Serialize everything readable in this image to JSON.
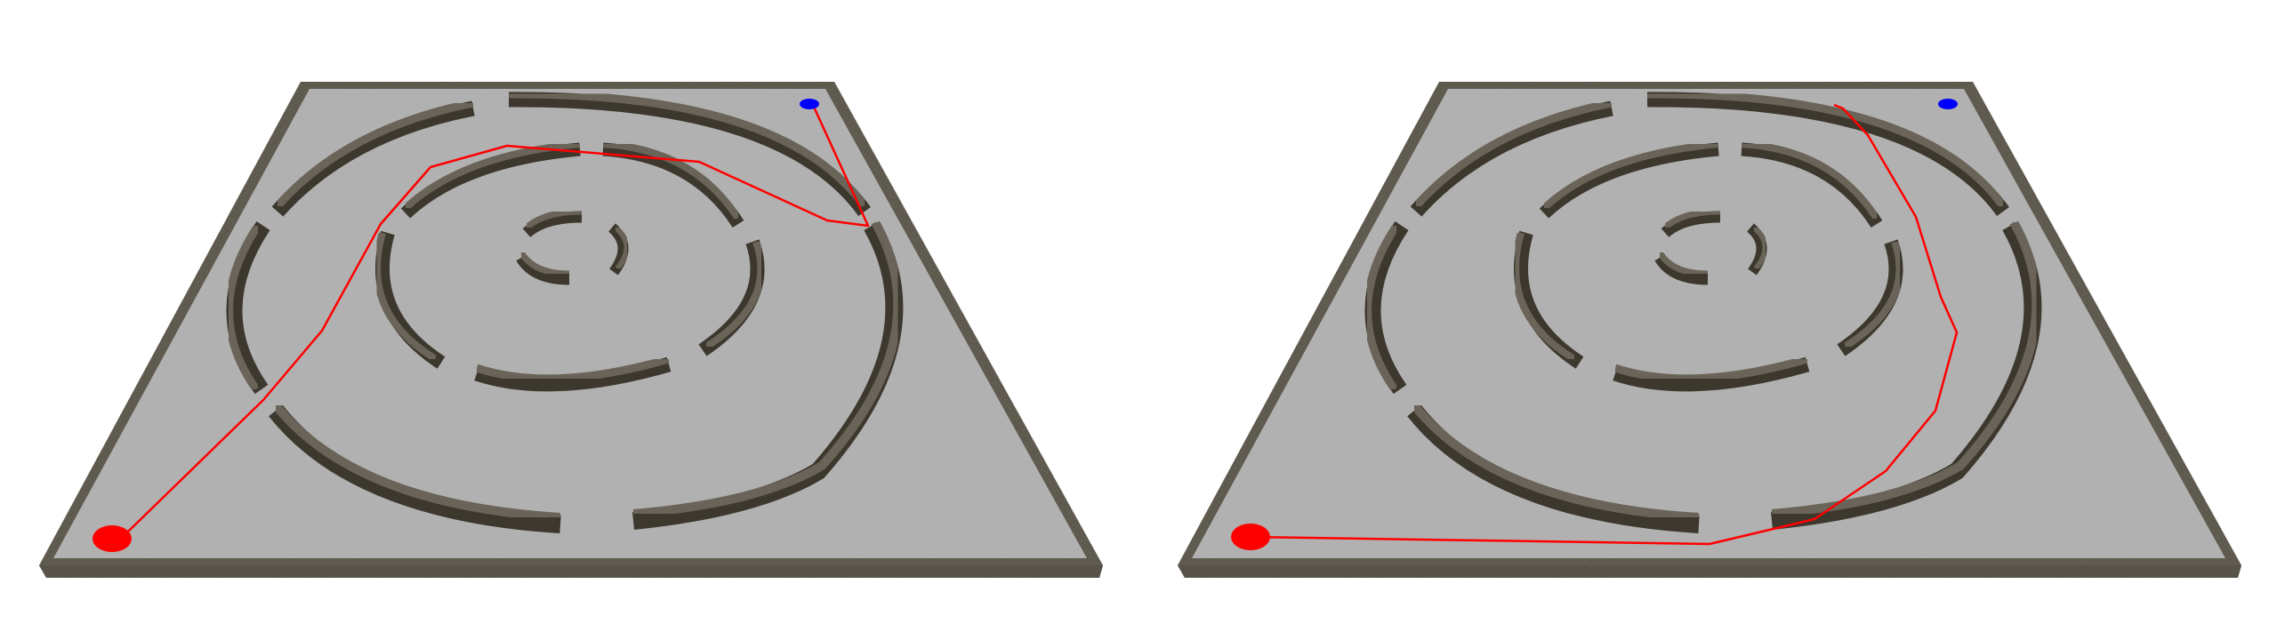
{
  "scene": {
    "background": "#ffffff",
    "floor_color": "#b1b1b1",
    "wall_top_color": "#5b5548",
    "wall_side_color": "#3d382e",
    "wall_dark_color": "#2a261f",
    "path_color": "#ff0000",
    "start_marker_color": "#ff0000",
    "goal_marker_color": "#0000ff"
  },
  "panels": [
    {
      "name": "left-maze-panel",
      "description_icon": "circular-maze-with-path",
      "start_marker": "red-ellipse",
      "goal_marker": "blue-ellipse",
      "route": "through-inner-rings"
    },
    {
      "name": "right-maze-panel",
      "description_icon": "circular-maze-with-path",
      "start_marker": "red-ellipse",
      "goal_marker": "blue-ellipse",
      "route": "around-outer-ring"
    }
  ]
}
